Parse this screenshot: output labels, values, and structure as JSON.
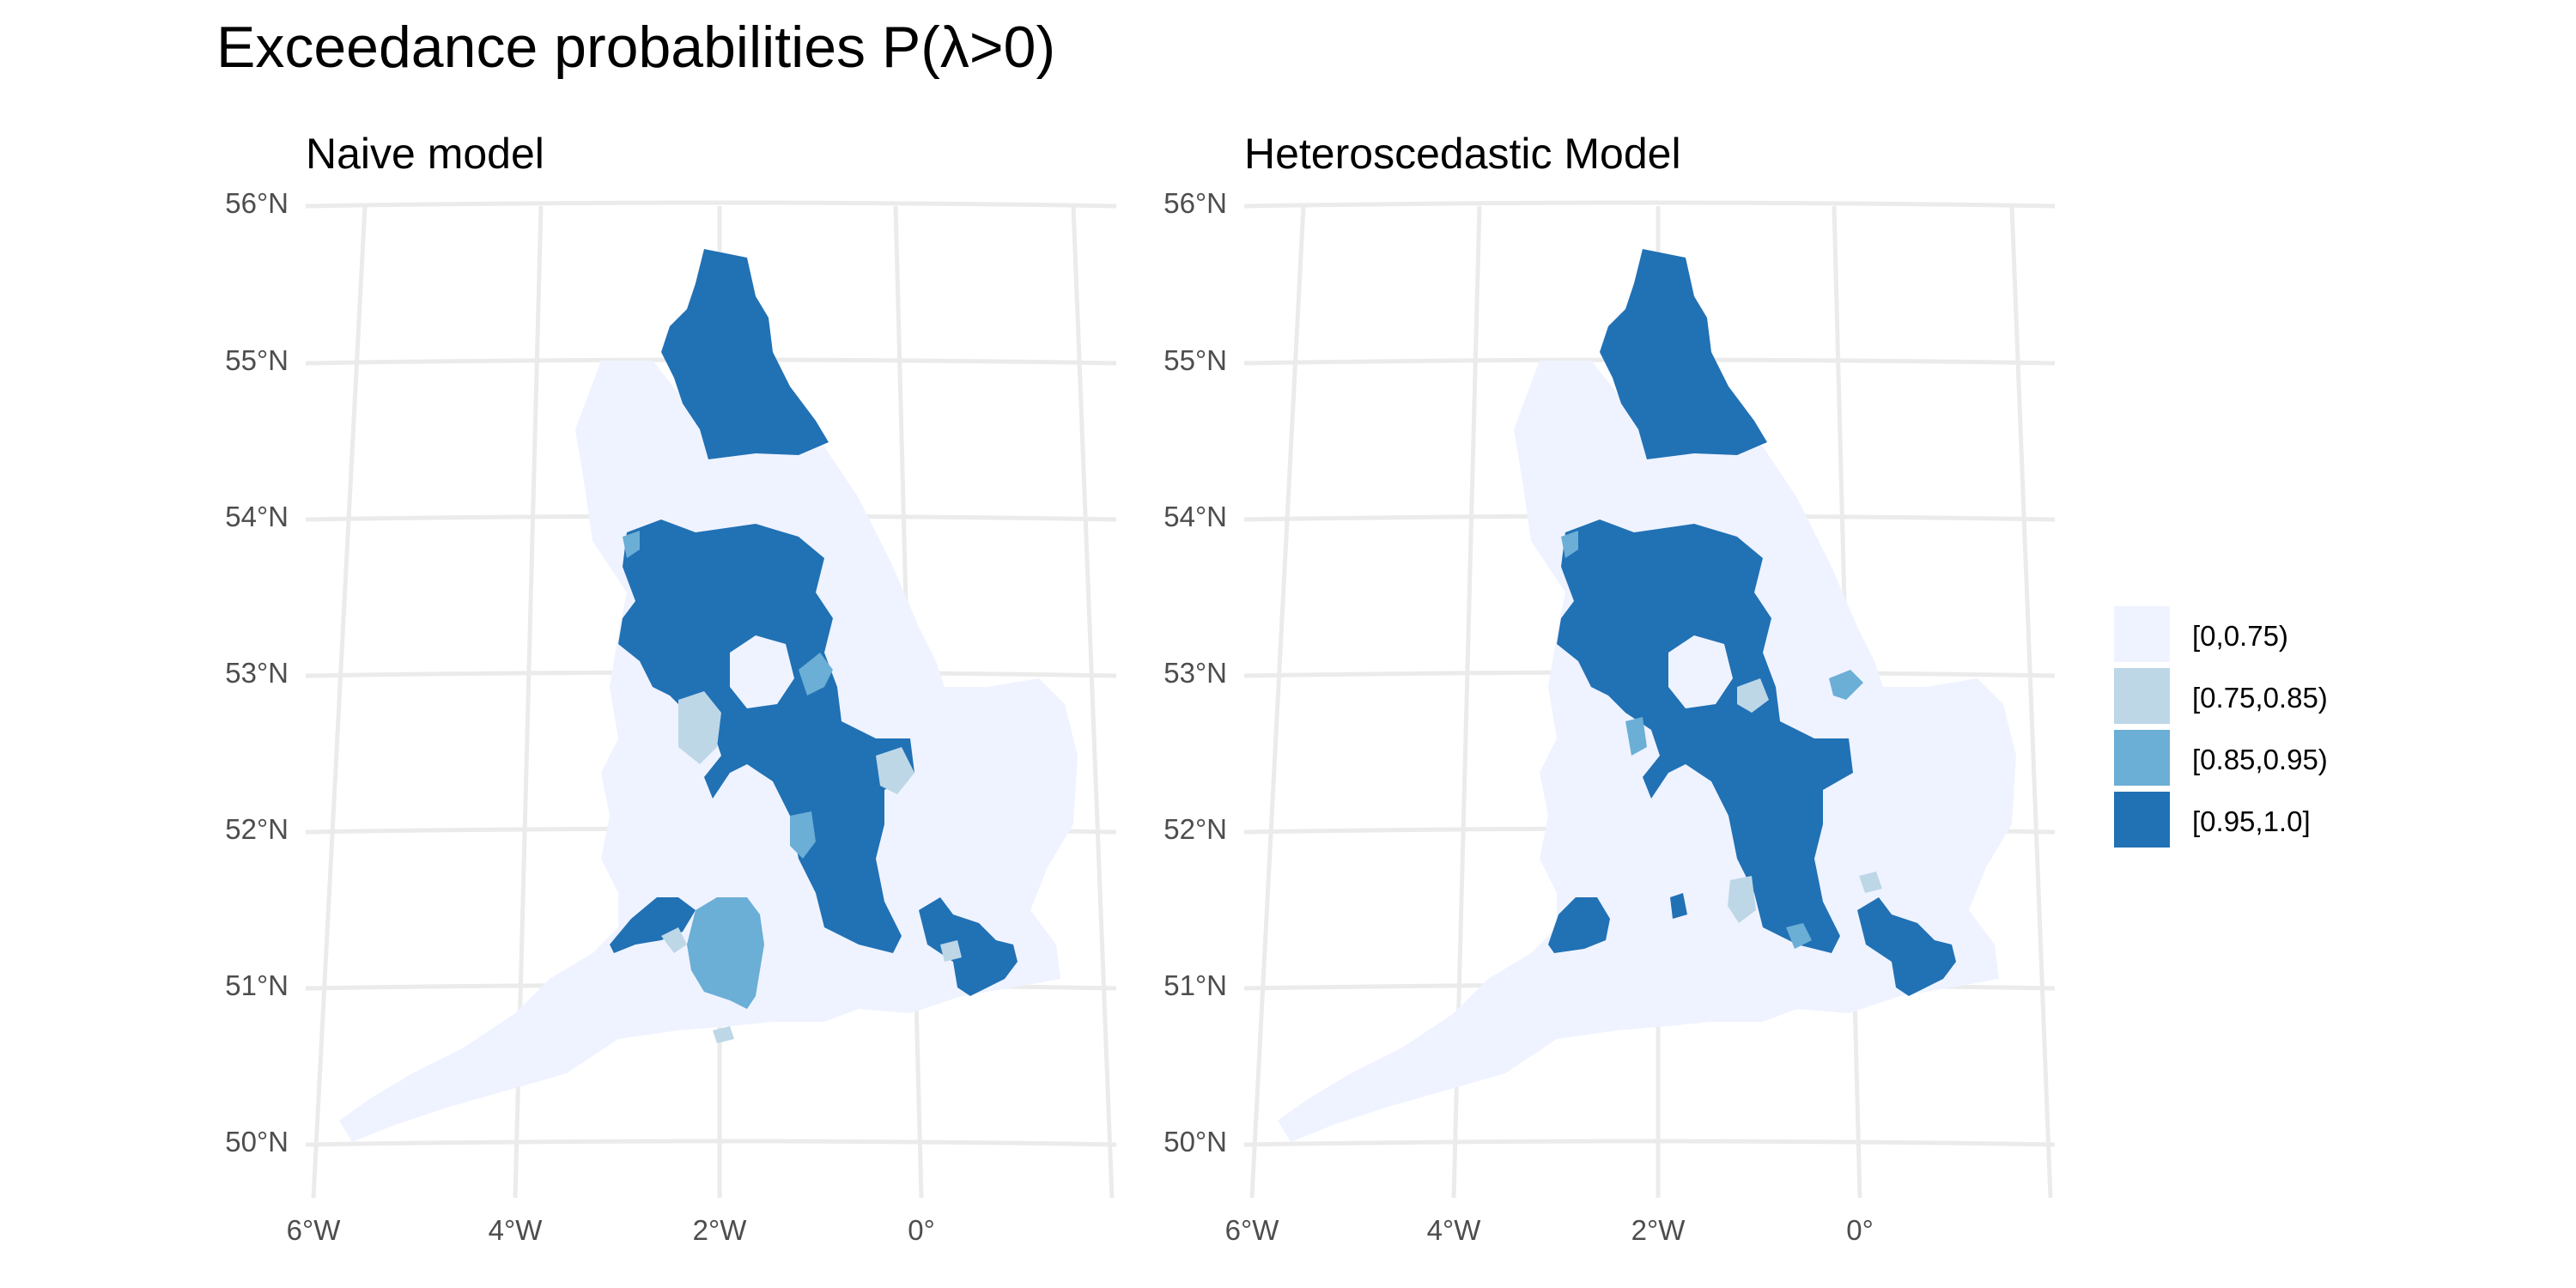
{
  "title": "Exceedance probabilities P(λ>0)",
  "colors": {
    "bin0": "#eff3ff",
    "bin1": "#bdd7e7",
    "bin2": "#6baed6",
    "bin3": "#2171b5"
  },
  "legend": {
    "items": [
      {
        "label": "[0,0.75)",
        "color": "#eff3ff"
      },
      {
        "label": "[0.75,0.85)",
        "color": "#bdd7e7"
      },
      {
        "label": "[0.85,0.95)",
        "color": "#6baed6"
      },
      {
        "label": "[0.95,1.0]",
        "color": "#2171b5"
      }
    ]
  },
  "axes": {
    "lat_labels": [
      "56°N",
      "55°N",
      "54°N",
      "53°N",
      "52°N",
      "51°N",
      "50°N"
    ],
    "lon_labels": [
      "6°W",
      "4°W",
      "2°W",
      "0°"
    ]
  },
  "panels": [
    {
      "subtitle": "Naive model"
    },
    {
      "subtitle": "Heteroscedastic Model"
    }
  ]
}
